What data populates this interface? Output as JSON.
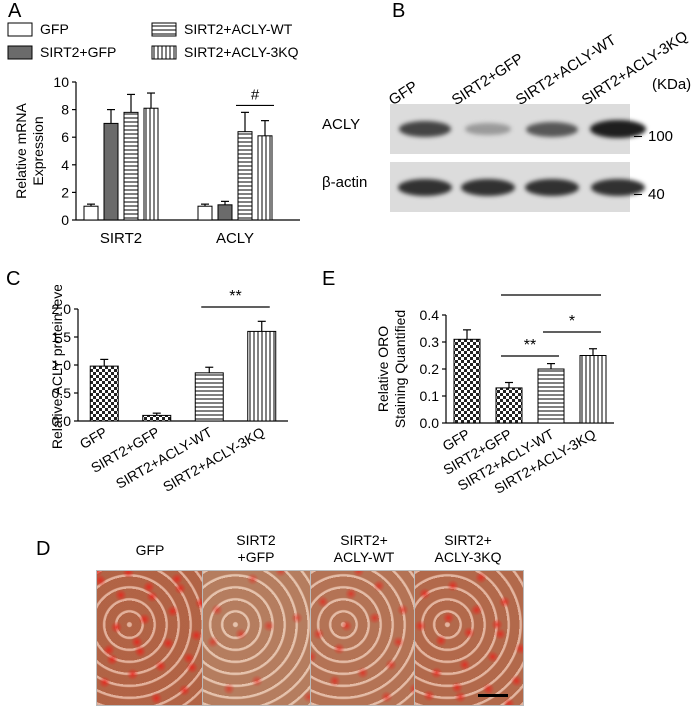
{
  "panels": {
    "a": "A",
    "b": "B",
    "c": "C",
    "d": "D",
    "e": "E"
  },
  "patterns": {
    "GFP": "white",
    "SIRT2+GFP": "solid-gray",
    "SIRT2+ACLY-WT": "horizontal-lines",
    "SIRT2+ACLY-3KQ": "vertical-lines",
    "check": "checkerboard"
  },
  "chart_data": [
    {
      "id": "A",
      "type": "bar",
      "categories": [
        "SIRT2",
        "ACLY"
      ],
      "ylabel": "Relative mRNA\nExpression",
      "ylim": [
        0,
        10
      ],
      "yticks": [
        0,
        2,
        4,
        6,
        8,
        10
      ],
      "legend": [
        "GFP",
        "SIRT2+GFP",
        "SIRT2+ACLY-WT",
        "SIRT2+ACLY-3KQ"
      ],
      "series": [
        {
          "name": "GFP",
          "values": [
            1.0,
            1.0
          ],
          "errors": [
            0.15,
            0.15
          ],
          "pattern": "white"
        },
        {
          "name": "SIRT2+GFP",
          "values": [
            7.0,
            1.1
          ],
          "errors": [
            1.0,
            0.25
          ],
          "pattern": "solid-gray"
        },
        {
          "name": "SIRT2+ACLY-WT",
          "values": [
            7.8,
            6.4
          ],
          "errors": [
            1.3,
            1.4
          ],
          "pattern": "horizontal-lines"
        },
        {
          "name": "SIRT2+ACLY-3KQ",
          "values": [
            8.1,
            6.1
          ],
          "errors": [
            1.1,
            1.1
          ],
          "pattern": "vertical-lines"
        }
      ],
      "annotations": [
        {
          "text": "#",
          "between": [
            "SIRT2+ACLY-WT",
            "SIRT2+ACLY-3KQ"
          ],
          "category": "ACLY"
        }
      ]
    },
    {
      "id": "C",
      "type": "bar",
      "categories": [
        "GFP",
        "SIRT2+GFP",
        "SIRT2+ACLY-WT",
        "SIRT2+ACLY-3KQ"
      ],
      "ylabel": "Relative ACLY protein level",
      "ylim": [
        0,
        2.0
      ],
      "yticks": [
        "0.0",
        "0.5",
        "1.0",
        "1.5",
        "2.0"
      ],
      "values": [
        0.98,
        0.1,
        0.86,
        1.6
      ],
      "errors": [
        0.12,
        0.04,
        0.1,
        0.18
      ],
      "patterns": [
        "check",
        "check",
        "horizontal-lines",
        "vertical-lines"
      ],
      "annotations": [
        {
          "text": "**",
          "from": 2,
          "to": 3
        }
      ]
    },
    {
      "id": "E",
      "type": "bar",
      "categories": [
        "GFP",
        "SIRT2+GFP",
        "SIRT2+ACLY-WT",
        "SIRT2+ACLY-3KQ"
      ],
      "ylabel": "Relative ORO\nStaining Quantified",
      "ylim": [
        0,
        0.4
      ],
      "yticks": [
        "0.0",
        "0.1",
        "0.2",
        "0.3",
        "0.4"
      ],
      "values": [
        0.31,
        0.13,
        0.2,
        0.25
      ],
      "errors": [
        0.035,
        0.02,
        0.02,
        0.025
      ],
      "patterns": [
        "check",
        "check",
        "horizontal-lines",
        "vertical-lines"
      ],
      "annotations": [
        {
          "text": "***",
          "from": 1,
          "to": 3
        },
        {
          "text": "**",
          "from": 1,
          "to": 2
        },
        {
          "text": "*",
          "from": 2,
          "to": 3
        }
      ]
    }
  ],
  "blot": {
    "lanes": [
      "GFP",
      "SIRT2+GFP",
      "SIRT2+ACLY-WT",
      "SIRT2+ACLY-3KQ"
    ],
    "unit": "(KDa)",
    "rows": [
      {
        "label": "ACLY",
        "marker": "100",
        "intensities": [
          0.8,
          0.35,
          0.7,
          1.0
        ]
      },
      {
        "label": "β-actin",
        "marker": "40",
        "intensities": [
          0.9,
          0.9,
          0.9,
          0.9
        ]
      }
    ]
  },
  "photos": {
    "labels": [
      "GFP",
      "SIRT2\n+GFP",
      "SIRT2+\nACLY-WT",
      "SIRT2+\nACLY-3KQ"
    ],
    "redness": [
      0.85,
      0.2,
      0.45,
      0.7
    ]
  }
}
